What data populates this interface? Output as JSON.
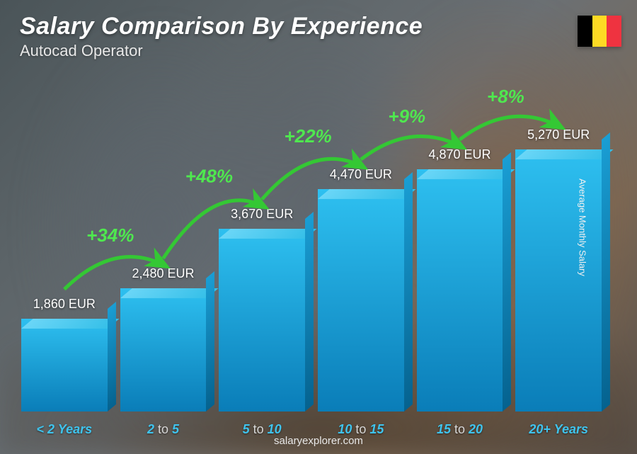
{
  "header": {
    "title": "Salary Comparison By Experience",
    "subtitle": "Autocad Operator"
  },
  "flag": {
    "colors": [
      "#000000",
      "#fdda24",
      "#ef3340"
    ]
  },
  "yaxis_label": "Average Monthly Salary",
  "chart": {
    "type": "bar",
    "max_value": 5270,
    "bar_front_gradient": [
      "#2ec0f0",
      "#0a7db8"
    ],
    "bar_top_gradient": [
      "#6ad6f7",
      "#35bfe8"
    ],
    "bar_side_gradient": [
      "#1a9ed4",
      "#05628f"
    ],
    "category_color": "#3fc4ee",
    "category_muted_color": "#d8d8d8",
    "pct_color": "#4fe84f",
    "arrow_color": "#34c834",
    "bars": [
      {
        "cat_html": "&lt; 2 Years",
        "value": 1860,
        "value_label": "1,860 EUR",
        "pct": "+34%"
      },
      {
        "cat_html": "2 <span class='muted'>to</span> 5",
        "value": 2480,
        "value_label": "2,480 EUR",
        "pct": "+48%"
      },
      {
        "cat_html": "5 <span class='muted'>to</span> 10",
        "value": 3670,
        "value_label": "3,670 EUR",
        "pct": "+22%"
      },
      {
        "cat_html": "10 <span class='muted'>to</span> 15",
        "value": 4470,
        "value_label": "4,470 EUR",
        "pct": "+9%"
      },
      {
        "cat_html": "15 <span class='muted'>to</span> 20",
        "value": 4870,
        "value_label": "4,870 EUR",
        "pct": "+8%"
      },
      {
        "cat_html": "20+ Years",
        "value": 5270,
        "value_label": "5,270 EUR",
        "pct": null
      }
    ]
  },
  "footer": "salaryexplorer.com"
}
